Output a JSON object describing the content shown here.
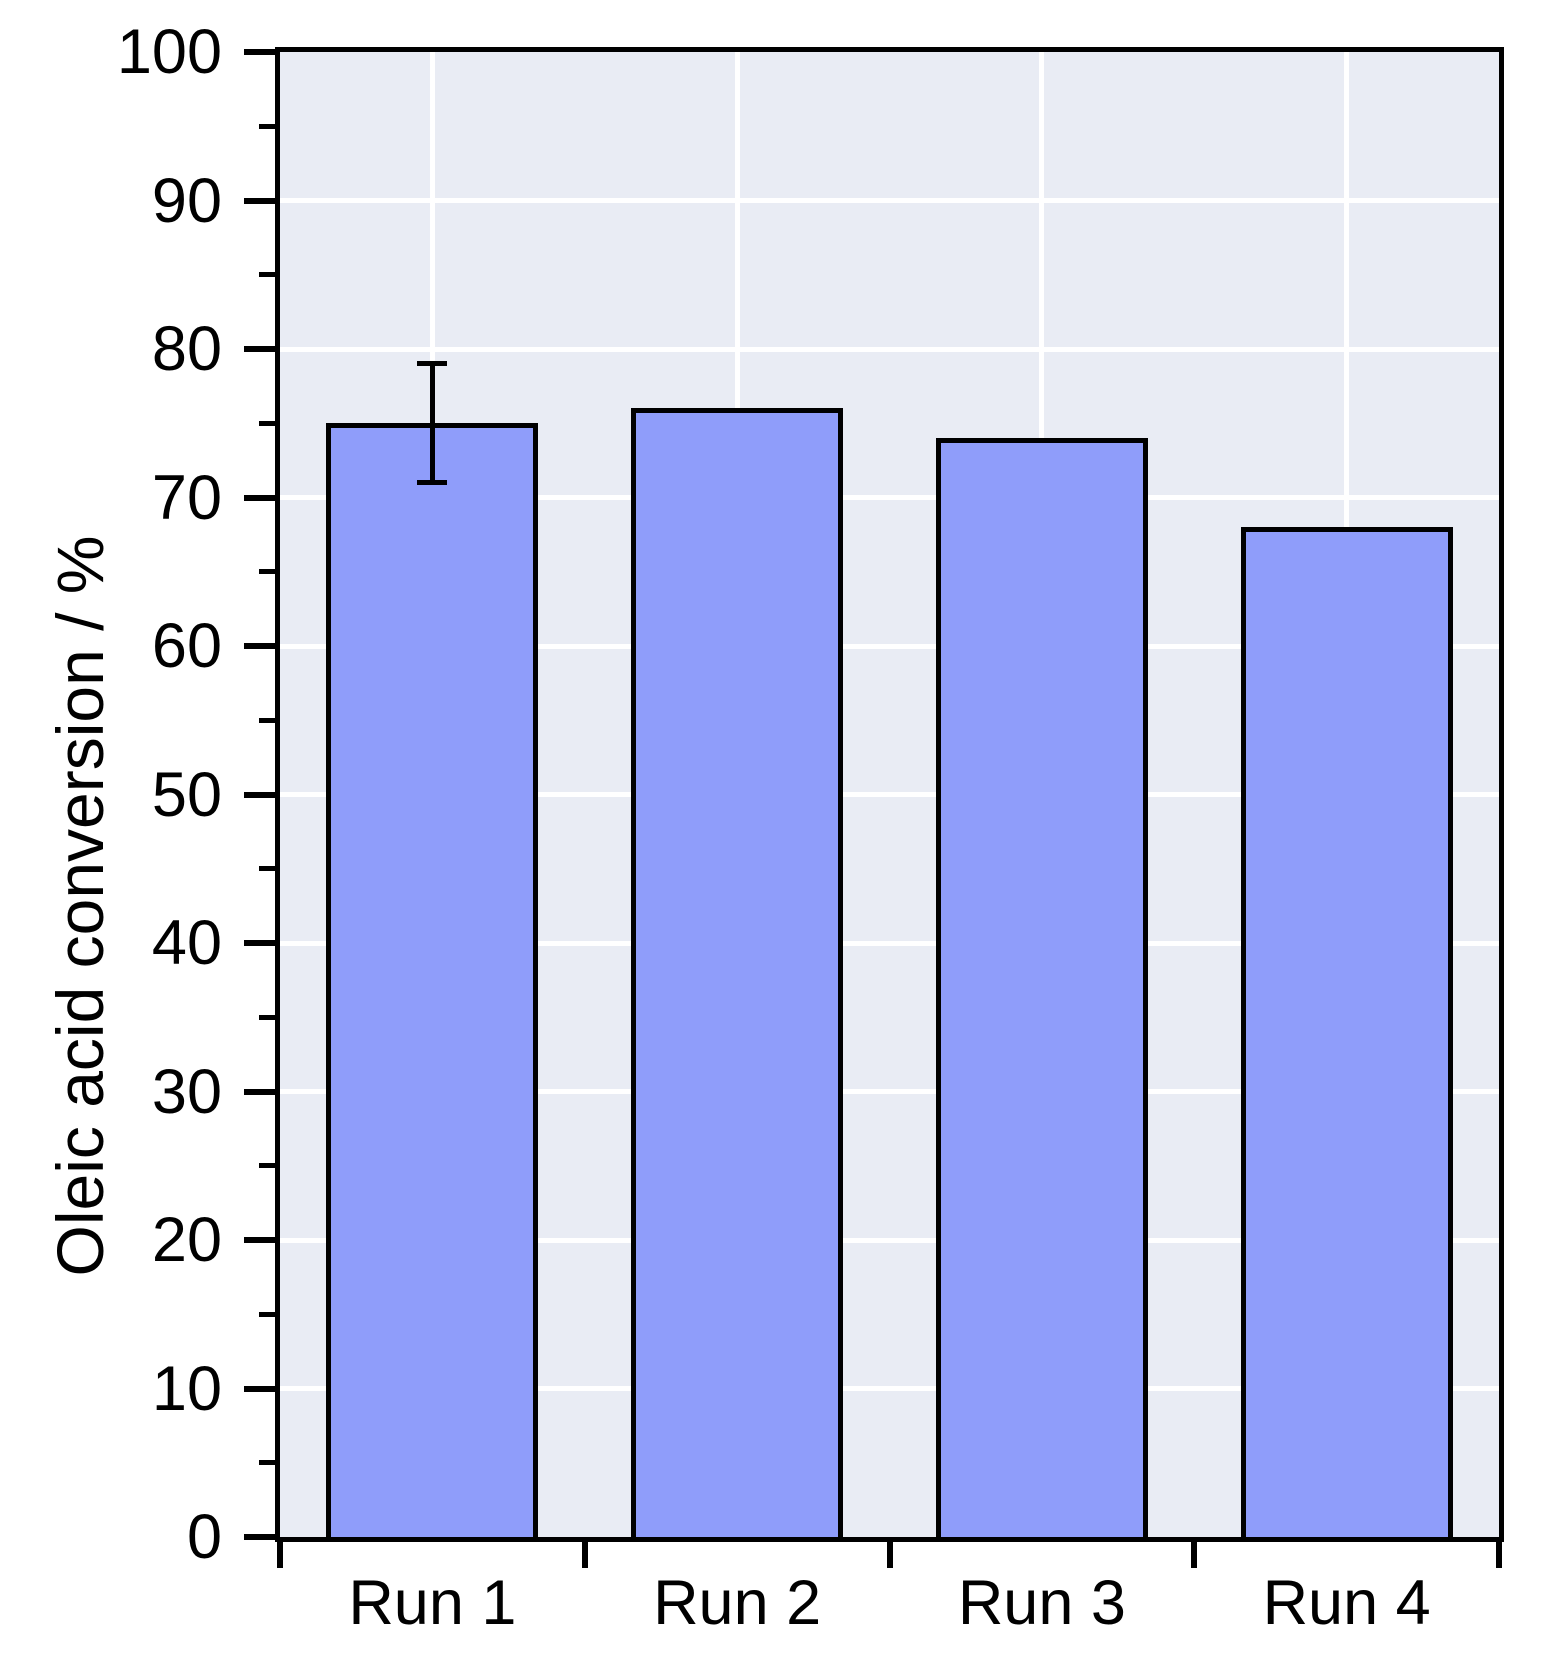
{
  "chart_data": {
    "type": "bar",
    "title": "",
    "ylabel": "Oleic acid conversion / %",
    "xlabel": "",
    "categories": [
      "Run 1",
      "Run 2",
      "Run 3",
      "Run 4"
    ],
    "values": [
      75,
      76,
      74,
      68
    ],
    "error_bars": [
      {
        "category": "Run 1",
        "value": 75,
        "error_plus": 4,
        "error_minus": 4
      }
    ],
    "ylim": [
      0,
      100
    ],
    "y_major_tick_step": 10,
    "y_minor_tick_step": 5,
    "y_tick_labels": [
      "0",
      "10",
      "20",
      "30",
      "40",
      "50",
      "60",
      "70",
      "80",
      "90",
      "100"
    ],
    "grid": {
      "horizontal": "major-ticks",
      "vertical": "category-centers",
      "style": "solid"
    },
    "legend": "none",
    "colors": {
      "bar_fill": "#8f9dfa",
      "bar_border": "#000000",
      "plot_background": "#e9ecf4",
      "gridline": "#ffffff",
      "axis_frame": "#000000",
      "text": "#000000",
      "page_background": "#ffffff"
    }
  }
}
